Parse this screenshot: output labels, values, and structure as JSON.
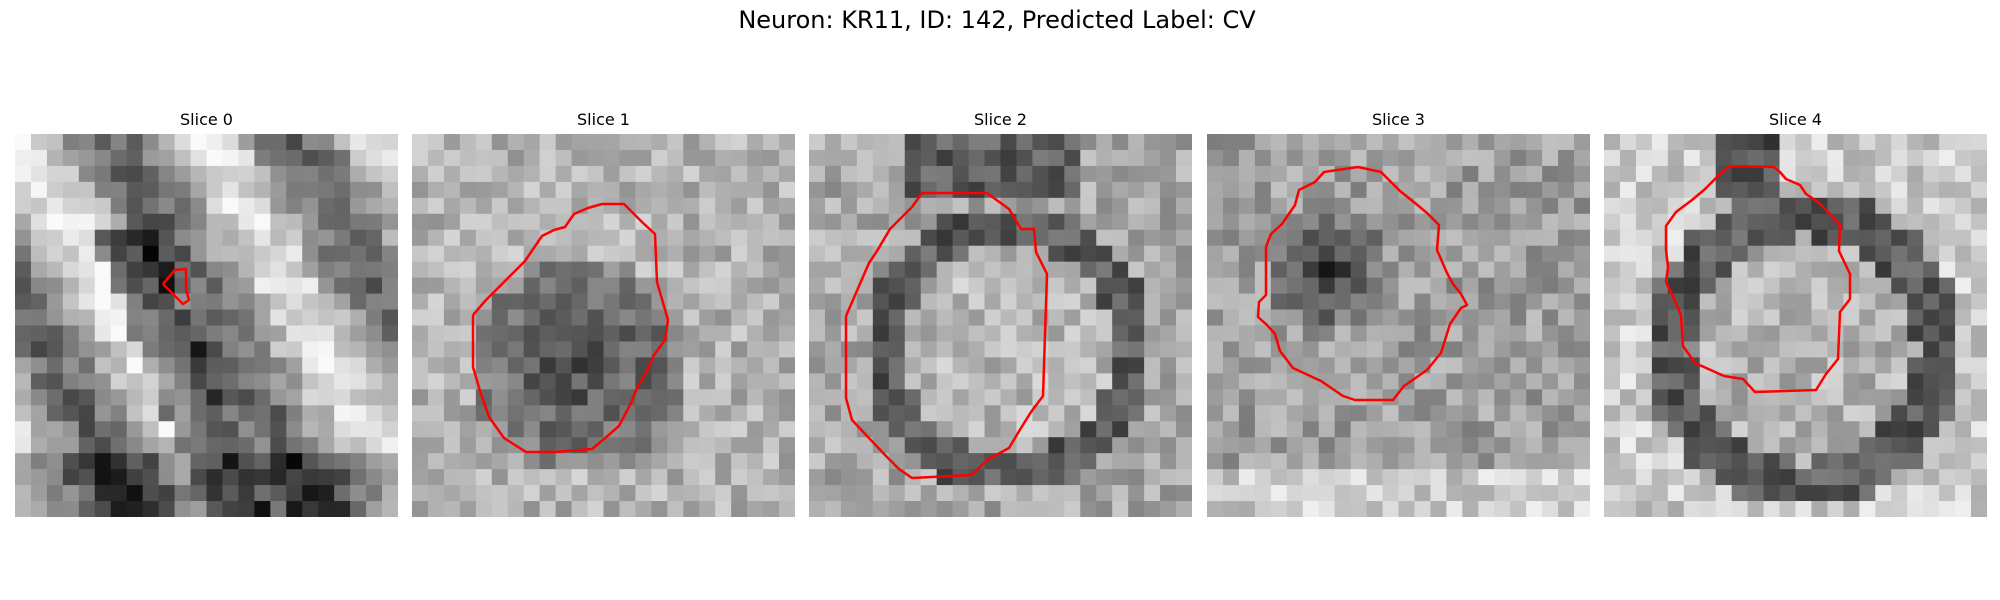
{
  "figure": {
    "title": "Neuron: KR11, ID: 142, Predicted Label: CV"
  },
  "panels": [
    {
      "title": "Slice 0"
    },
    {
      "title": "Slice 1"
    },
    {
      "title": "Slice 2"
    },
    {
      "title": "Slice 3"
    },
    {
      "title": "Slice 4"
    }
  ],
  "colors": {
    "contour": "#ff0000",
    "colormap": "gray"
  }
}
